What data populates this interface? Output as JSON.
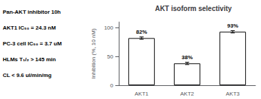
{
  "chart_data": {
    "type": "bar",
    "title": "AKT isoform selectivity",
    "categories": [
      "AKT1",
      "AKT2",
      "AKT3"
    ],
    "values": [
      82,
      38,
      93
    ],
    "errors": [
      2,
      2,
      2
    ],
    "value_labels": [
      "82%",
      "38%",
      "93%"
    ],
    "data_labels": true,
    "colors": [
      "white",
      "white",
      "white"
    ],
    "ylabel": "Inhibition (%, 10 nM)",
    "ylim": [
      0,
      110
    ],
    "yticks": [
      0,
      50,
      100
    ],
    "grid": false,
    "annotations": [
      "Pan-AKT inhibitor 10h",
      "AKT1 IC₅₀ = 24.3 nM",
      "PC-3 cell IC₅₀ = 3.7 uM",
      "HLMs T₁/₂ > 145 min",
      "CL < 9.6 ul/min/mg"
    ]
  }
}
